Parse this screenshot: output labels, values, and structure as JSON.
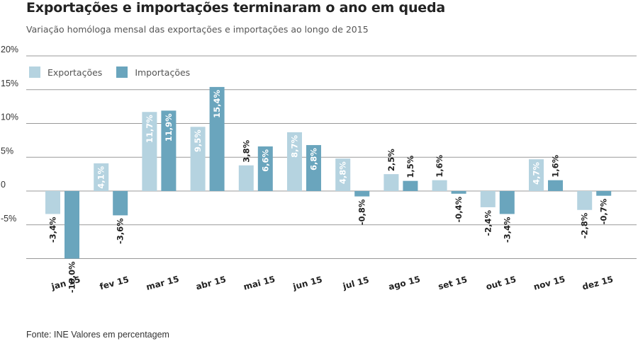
{
  "title": "Exportações e importações terminaram o ano em queda",
  "subtitle": "Variação homóloga mensal das exportações e importações ao longo de 2015",
  "source": "Fonte: INE Valores em percentagem",
  "colors": {
    "exports": "#b5d3e0",
    "imports": "#6aa5bd",
    "grid": "#999999"
  },
  "chart_data": {
    "type": "bar",
    "categories": [
      "jan 15",
      "fev 15",
      "mar 15",
      "abr 15",
      "mai 15",
      "jun 15",
      "jul 15",
      "ago 15",
      "set 15",
      "out 15",
      "nov 15",
      "dez 15"
    ],
    "series": [
      {
        "name": "Exportações",
        "values": [
          -3.4,
          4.1,
          11.7,
          9.5,
          3.8,
          8.7,
          4.8,
          2.5,
          1.6,
          -2.4,
          4.7,
          -2.8
        ],
        "labels": [
          "-3,4%",
          "4,1%",
          "11,7%",
          "9,5%",
          "3,8%",
          "8,7%",
          "4,8%",
          "2,5%",
          "1,6%",
          "-2,4%",
          "4,7%",
          "-2,8%"
        ]
      },
      {
        "name": "Importações",
        "values": [
          -10.0,
          -3.6,
          11.9,
          15.4,
          6.6,
          6.8,
          -0.8,
          1.5,
          -0.4,
          -3.4,
          1.6,
          -0.7
        ],
        "labels": [
          "-10,0%",
          "-3,6%",
          "11,9%",
          "15,4%",
          "6,6%",
          "6,8%",
          "-0,8%",
          "1,5%",
          "-0,4%",
          "-3,4%",
          "1,6%",
          "-0,7%"
        ]
      }
    ],
    "yticks": [
      "20%",
      "15%",
      "10%",
      "5%",
      "0",
      "-5%"
    ],
    "ytick_values": [
      20,
      15,
      10,
      5,
      0,
      -5
    ],
    "ylim": [
      -10,
      20
    ],
    "grid": true,
    "legend": "top-left"
  }
}
